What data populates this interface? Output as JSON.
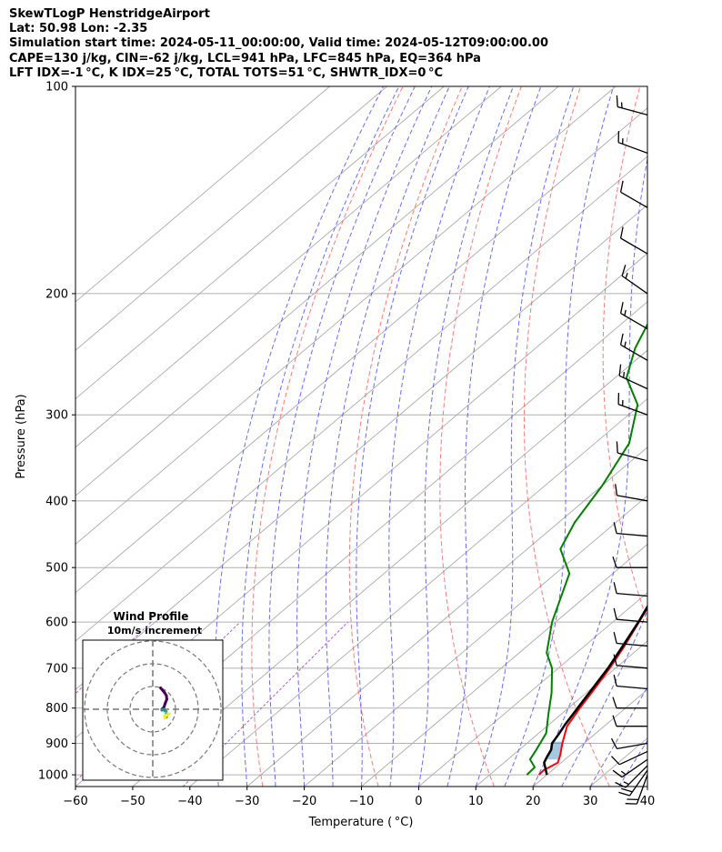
{
  "header": {
    "title": "SkewTLogP HenstridgeAirport",
    "location": "Lat: 50.98   Lon: -2.35",
    "times": "Simulation start time: 2024-05-11_00:00:00, Valid time: 2024-05-12T09:00:00.00",
    "indices1": "CAPE=130 j/kg, CIN=-62 j/kg, LCL=941 hPa, LFC=845 hPa, EQ=364 hPa",
    "indices2": "LFT IDX=-1 °C, K IDX=25 °C, TOTAL TOTS=51 °C, SHWTR_IDX=0 °C"
  },
  "chart_data": {
    "type": "line",
    "title": "SkewTLogP HenstridgeAirport",
    "xlabel": "Temperature ( °C)",
    "ylabel": "Pressure (hPa)",
    "xlim": [
      -60,
      40
    ],
    "ylim": [
      1040,
      100
    ],
    "y_scale": "log",
    "x_ticks": [
      -60,
      -50,
      -40,
      -30,
      -20,
      -10,
      0,
      10,
      20,
      30,
      40
    ],
    "x_tick_labels": [
      "−60",
      "−50",
      "−40",
      "−30",
      "−20",
      "−10",
      "0",
      "10",
      "20",
      "30",
      "40"
    ],
    "y_ticks": [
      1000,
      900,
      800,
      700,
      600,
      500,
      400,
      300,
      200,
      100
    ],
    "y_tick_labels": [
      "1000",
      "900",
      "800",
      "700",
      "600",
      "500",
      "400",
      "300",
      "200",
      "100"
    ],
    "grid": true,
    "colors": {
      "temperature": "#ff0000",
      "dewpoint": "#008000",
      "parcel": "#000000",
      "cape_fill": "#1f77b4",
      "dry_adiabat": "#ff5555",
      "moist_adiabat": "#4444ff",
      "mixing_ratio": "#9933cc",
      "isotherm": "#aaaaaa"
    },
    "series": [
      {
        "name": "temperature",
        "points": [
          [
            18.6,
            1000
          ],
          [
            18.5,
            985
          ],
          [
            19.4,
            960
          ],
          [
            18.2,
            935
          ],
          [
            16.2,
            900
          ],
          [
            13.5,
            850
          ],
          [
            12.0,
            800
          ],
          [
            10.6,
            750
          ],
          [
            9.0,
            700
          ],
          [
            7.0,
            650
          ],
          [
            4.6,
            600
          ],
          [
            2.0,
            550
          ],
          [
            -1.4,
            500
          ],
          [
            -5.0,
            450
          ],
          [
            -9.2,
            400
          ],
          [
            -14.0,
            350
          ],
          [
            -20.2,
            300
          ],
          [
            -26.7,
            260
          ],
          [
            -32.3,
            240
          ],
          [
            -35.6,
            230
          ],
          [
            -38.3,
            220
          ],
          [
            -41.6,
            200
          ],
          [
            -45.9,
            180
          ],
          [
            -50.1,
            160
          ],
          [
            -54.2,
            140
          ],
          [
            -57.6,
            125
          ],
          [
            -60.3,
            115
          ],
          [
            -61.9,
            100
          ]
        ]
      },
      {
        "name": "dewpoint",
        "points": [
          [
            16.5,
            1000
          ],
          [
            16.3,
            975
          ],
          [
            13.9,
            950
          ],
          [
            13.0,
            920
          ],
          [
            11.3,
            870
          ],
          [
            8.0,
            820
          ],
          [
            3.9,
            760
          ],
          [
            -1.1,
            700
          ],
          [
            -5.2,
            665
          ],
          [
            -10.6,
            600
          ],
          [
            -17.6,
            510
          ],
          [
            -24.2,
            470
          ],
          [
            -27.2,
            430
          ],
          [
            -30.0,
            380
          ],
          [
            -34.0,
            330
          ],
          [
            -40.5,
            290
          ],
          [
            -48.0,
            265
          ],
          [
            -52.6,
            240
          ],
          [
            -57.2,
            210
          ],
          [
            -63.9,
            190
          ],
          [
            -69.1,
            170
          ],
          [
            -71.7,
            160
          ],
          [
            -74.0,
            150
          ],
          [
            -72.6,
            140
          ],
          [
            -69.3,
            120
          ],
          [
            -67.3,
            110
          ],
          [
            -65.6,
            100
          ]
        ]
      },
      {
        "name": "parcel",
        "points": [
          [
            20.0,
            1000
          ],
          [
            17.0,
            960
          ],
          [
            16.3,
            941
          ],
          [
            15.6,
            920
          ],
          [
            14.4,
            900
          ],
          [
            13.6,
            870
          ],
          [
            12.8,
            845
          ],
          [
            11.6,
            800
          ],
          [
            10.2,
            750
          ],
          [
            8.7,
            700
          ],
          [
            6.7,
            650
          ],
          [
            4.5,
            600
          ],
          [
            1.8,
            550
          ],
          [
            -1.3,
            500
          ],
          [
            -5.0,
            450
          ],
          [
            -9.3,
            400
          ],
          [
            -14.4,
            350
          ],
          [
            -20.7,
            300
          ],
          [
            -28.6,
            250
          ],
          [
            -38.5,
            200
          ],
          [
            -51.2,
            150
          ],
          [
            -59.3,
            125
          ],
          [
            -68.4,
            100
          ]
        ]
      }
    ],
    "wind_barbs": [
      [
        1000,
        200,
        20
      ],
      [
        985,
        215,
        18
      ],
      [
        970,
        225,
        17
      ],
      [
        950,
        235,
        15
      ],
      [
        925,
        245,
        12
      ],
      [
        900,
        260,
        10
      ],
      [
        850,
        270,
        8
      ],
      [
        800,
        270,
        8
      ],
      [
        750,
        275,
        8
      ],
      [
        700,
        275,
        8
      ],
      [
        650,
        275,
        8
      ],
      [
        600,
        275,
        8
      ],
      [
        550,
        275,
        8
      ],
      [
        500,
        270,
        10
      ],
      [
        450,
        275,
        10
      ],
      [
        400,
        280,
        12
      ],
      [
        350,
        285,
        12
      ],
      [
        300,
        290,
        13
      ],
      [
        275,
        295,
        13
      ],
      [
        250,
        300,
        14
      ],
      [
        225,
        300,
        14
      ],
      [
        200,
        305,
        13
      ],
      [
        175,
        300,
        12
      ],
      [
        150,
        300,
        12
      ],
      [
        125,
        290,
        14
      ],
      [
        110,
        285,
        15
      ]
    ],
    "inset": {
      "title": "Wind Profile",
      "subtitle": "10m/s increment"
    }
  }
}
